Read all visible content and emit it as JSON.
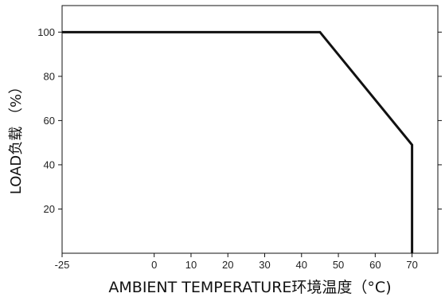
{
  "chart_data": {
    "type": "line",
    "title": "",
    "xlabel": "AMBIENT TEMPERATURE环境温度（°C)",
    "ylabel": "LOAD负载 （%）",
    "xlim": [
      -25,
      77
    ],
    "ylim": [
      0,
      112
    ],
    "x_ticks": [
      -25,
      0,
      10,
      20,
      30,
      40,
      50,
      60,
      70
    ],
    "y_ticks": [
      20,
      40,
      60,
      80,
      100
    ],
    "grid": false,
    "legend": "none",
    "series": [
      {
        "x": [
          -25,
          45,
          70,
          70
        ],
        "y": [
          100,
          100,
          49,
          0
        ],
        "color": "#111111"
      }
    ]
  }
}
